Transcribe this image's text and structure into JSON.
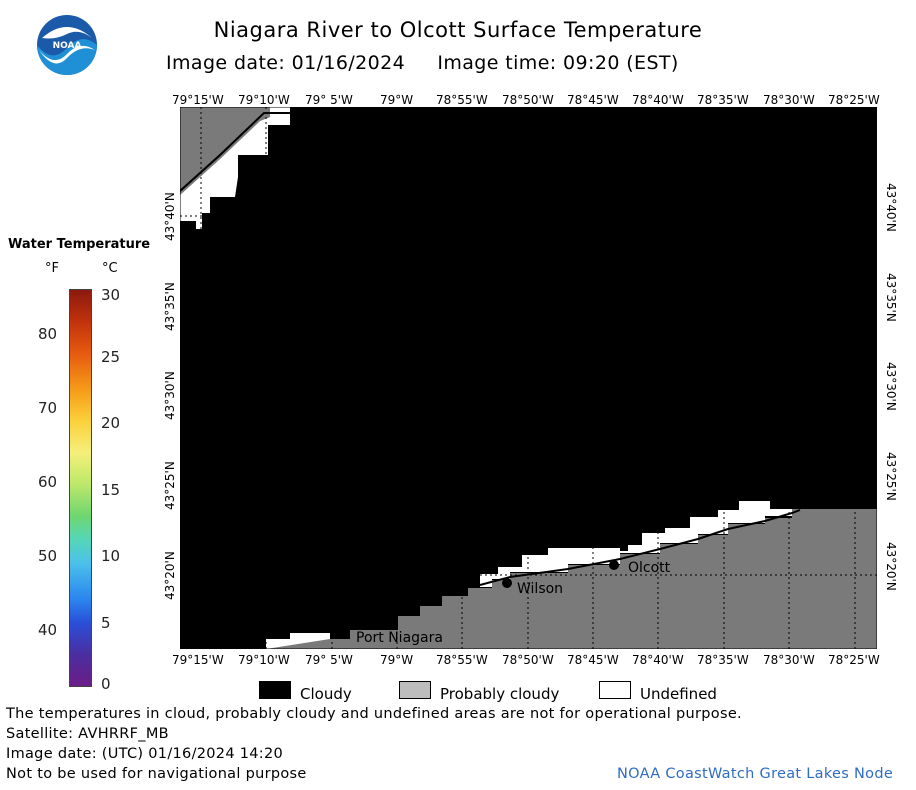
{
  "title": "Niagara River to Olcott Surface Temperature",
  "image_date_line": "Image date: 01/16/2024     Image time: 09:20 (EST)",
  "logo": {
    "text": "NOAA",
    "icon": "noaa-logo"
  },
  "axes": {
    "lon_labels": [
      "79°15'W",
      "79°10'W",
      "79° 5'W",
      "79°W",
      "78°55'W",
      "78°50'W",
      "78°45'W",
      "78°40'W",
      "78°35'W",
      "78°30'W",
      "78°25'W"
    ],
    "lat_labels": [
      "43°40'N",
      "43°35'N",
      "43°30'N",
      "43°25'N",
      "43°20'N"
    ]
  },
  "places": [
    {
      "name": "Wilson",
      "marker": true
    },
    {
      "name": "Olcott",
      "marker": true
    },
    {
      "name": "Port Niagara",
      "marker": false
    }
  ],
  "colorbar": {
    "title": "Water Temperature",
    "unit_f": "°F",
    "unit_c": "°C",
    "f_labels": [
      "80",
      "70",
      "60",
      "50",
      "40"
    ],
    "c_labels": [
      "30",
      "25",
      "20",
      "15",
      "10",
      "5",
      "0"
    ]
  },
  "legend": {
    "cloudy": "Cloudy",
    "probably_cloudy": "Probably cloudy",
    "undefined": "Undefined",
    "colors": {
      "cloudy": "#000000",
      "probably_cloudy": "#bdbdbd",
      "undefined": "#ffffff",
      "land": "#7a7a7a"
    }
  },
  "footer": {
    "disclaimer": "The temperatures in cloud, probably cloudy and undefined areas are not for operational purpose.",
    "satellite": "Satellite: AVHRRF_MB",
    "utc_date": "Image date: (UTC) 01/16/2024  14:20",
    "nav_warning": "Not to be used for navigational purpose",
    "credit": "NOAA CoastWatch Great Lakes Node"
  }
}
